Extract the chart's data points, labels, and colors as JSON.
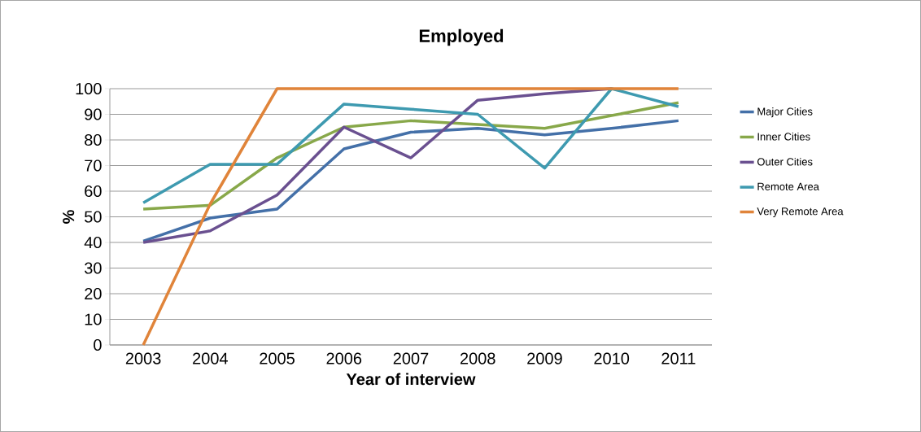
{
  "chart_data": {
    "type": "line",
    "title": "Employed",
    "xlabel": "Year of interview",
    "ylabel": "%",
    "categories": [
      "2003",
      "2004",
      "2005",
      "2006",
      "2007",
      "2008",
      "2009",
      "2010",
      "2011"
    ],
    "series": [
      {
        "name": "Major Cities",
        "color": "#4470a8",
        "values": [
          40.5,
          49.5,
          53,
          76.5,
          83,
          84.5,
          82,
          84.5,
          87.5
        ]
      },
      {
        "name": "Inner Cities",
        "color": "#88a84a",
        "values": [
          53,
          54.5,
          73,
          85,
          87.5,
          86,
          84.5,
          89.5,
          94.5
        ]
      },
      {
        "name": "Outer Cities",
        "color": "#6a5090",
        "values": [
          40,
          44.5,
          58.5,
          85,
          73,
          95.5,
          98,
          100,
          null
        ]
      },
      {
        "name": "Remote Area",
        "color": "#3e9ab0",
        "values": [
          55.5,
          70.5,
          70.5,
          94,
          92,
          90,
          69,
          100,
          93
        ]
      },
      {
        "name": "Very Remote Area",
        "color": "#e0843a",
        "values": [
          0,
          55,
          100,
          100,
          100,
          100,
          100,
          100,
          100
        ]
      }
    ],
    "ylim": [
      0,
      100
    ],
    "yticks": [
      0,
      10,
      20,
      30,
      40,
      50,
      60,
      70,
      80,
      90,
      100
    ],
    "grid": "y",
    "legend": "right",
    "marker": "none",
    "line_style": "solid"
  }
}
